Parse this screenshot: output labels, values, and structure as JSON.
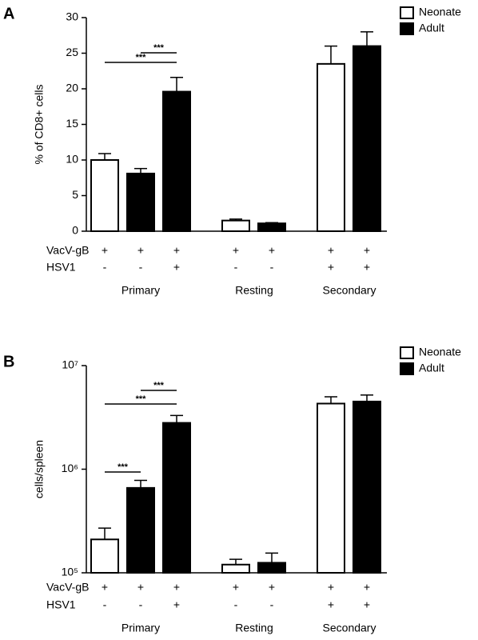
{
  "chart_data": [
    {
      "type": "bar",
      "panel": "A",
      "y_label": "% of CD8+ cells",
      "log_y": false,
      "ylim": [
        0,
        30
      ],
      "yticks": [
        0,
        5,
        10,
        15,
        20,
        25,
        30
      ],
      "series": [
        {
          "name": "Neonate",
          "color": "#ffffff",
          "values": [
            10.0,
            null,
            null,
            1.5,
            null,
            23.5,
            null
          ],
          "errors": [
            0.9,
            null,
            null,
            0.2,
            null,
            2.5,
            null
          ]
        },
        {
          "name": "Adult",
          "color": "#000000",
          "values": [
            null,
            8.1,
            19.6,
            null,
            1.1,
            null,
            26.0
          ],
          "errors": [
            null,
            0.7,
            2.0,
            null,
            0.1,
            null,
            2.0
          ]
        }
      ],
      "conditions": [
        {
          "name": "VacV-gB",
          "values": [
            "+",
            "+",
            "+",
            "+",
            "+",
            "+",
            "+"
          ]
        },
        {
          "name": "HSV1",
          "values": [
            "-",
            "-",
            "+",
            "-",
            "-",
            "+",
            "+"
          ]
        }
      ],
      "groups": [
        "Primary",
        "Resting",
        "Secondary"
      ],
      "annotations": [
        "***",
        "***"
      ]
    },
    {
      "type": "bar",
      "panel": "B",
      "y_label": "cells/spleen",
      "log_y": true,
      "ylim": [
        100000,
        10000000
      ],
      "yticks": [
        {
          "value": 100000,
          "label": "10⁵"
        },
        {
          "value": 1000000,
          "label": "10⁶"
        },
        {
          "value": 10000000,
          "label": "10⁷"
        }
      ],
      "series": [
        {
          "name": "Neonate",
          "color": "#ffffff",
          "values": [
            210000,
            null,
            null,
            120000,
            null,
            4300000,
            null
          ],
          "errors": [
            60000,
            null,
            null,
            15000,
            null,
            700000,
            null
          ]
        },
        {
          "name": "Adult",
          "color": "#000000",
          "values": [
            null,
            660000,
            2800000,
            null,
            125000,
            null,
            4500000
          ],
          "errors": [
            null,
            120000,
            500000,
            null,
            30000,
            null,
            700000
          ]
        }
      ],
      "conditions": [
        {
          "name": "VacV-gB",
          "values": [
            "+",
            "+",
            "+",
            "+",
            "+",
            "+",
            "+"
          ]
        },
        {
          "name": "HSV1",
          "values": [
            "-",
            "-",
            "+",
            "-",
            "-",
            "+",
            "+"
          ]
        }
      ],
      "groups": [
        "Primary",
        "Resting",
        "Secondary"
      ],
      "annotations": [
        "***",
        "***",
        "***"
      ]
    }
  ]
}
